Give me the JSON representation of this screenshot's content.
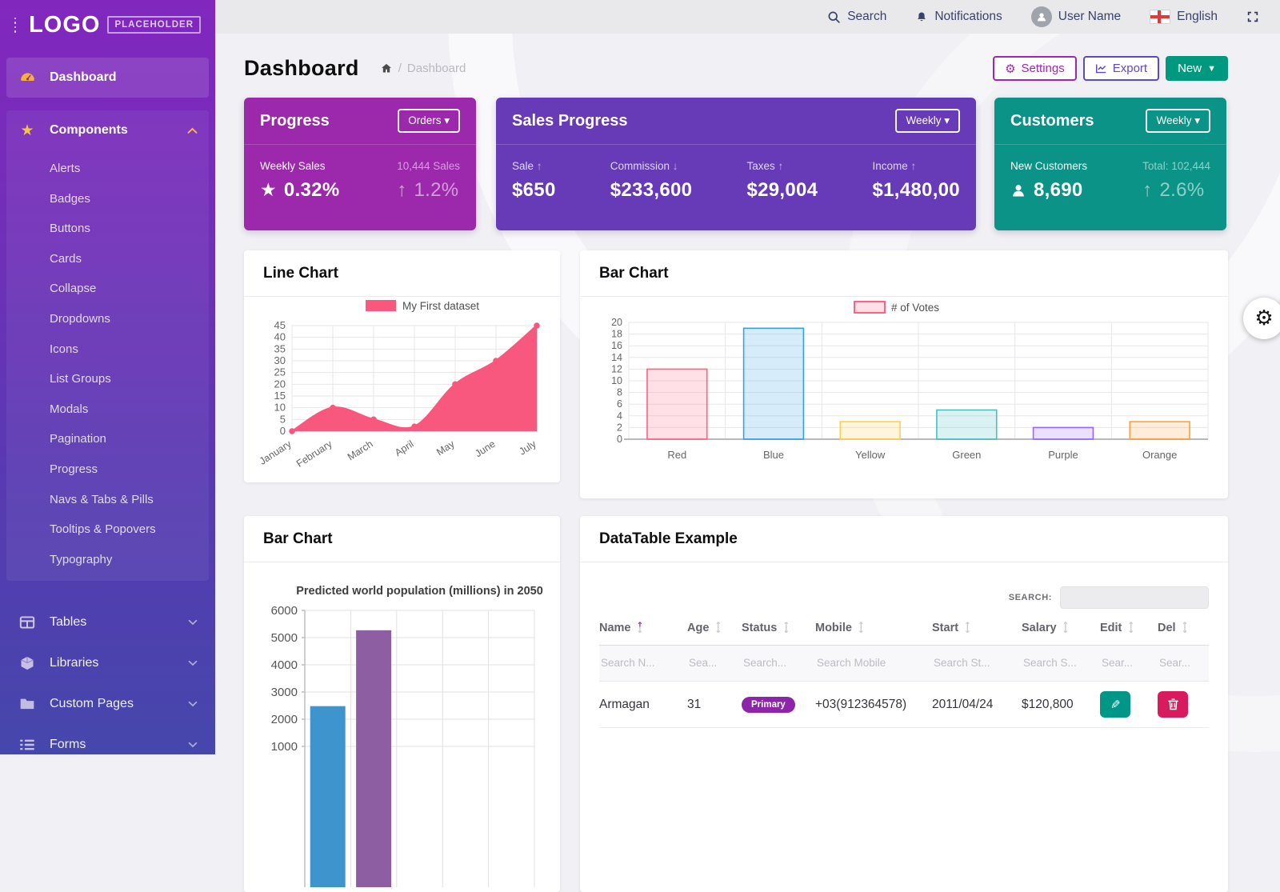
{
  "topbar": {
    "search": "Search",
    "notifications": "Notifications",
    "user": "User Name",
    "language": "English"
  },
  "sidebar": {
    "logo": "LOGO",
    "logo_badge": "PLACEHOLDER",
    "dashboard": "Dashboard",
    "components": {
      "label": "Components",
      "items": [
        "Alerts",
        "Badges",
        "Buttons",
        "Cards",
        "Collapse",
        "Dropdowns",
        "Icons",
        "List Groups",
        "Modals",
        "Pagination",
        "Progress",
        "Navs & Tabs & Pills",
        "Tooltips & Popovers",
        "Typography"
      ]
    },
    "groups": [
      {
        "label": "Tables",
        "icon": "table-icon"
      },
      {
        "label": "Libraries",
        "icon": "cube-icon"
      },
      {
        "label": "Custom Pages",
        "icon": "folder-icon"
      },
      {
        "label": "Forms",
        "icon": "list-icon"
      }
    ]
  },
  "page": {
    "title": "Dashboard",
    "breadcrumb_sep": "/",
    "breadcrumb": "Dashboard",
    "settings_label": "Settings",
    "export_label": "Export",
    "new_label": "New"
  },
  "cards": {
    "progress": {
      "title": "Progress",
      "dropdown": "Orders",
      "label": "Weekly Sales",
      "value": "0.32%",
      "sub_label": "10,444 Sales",
      "sub_value": "1.2%",
      "color": "#9C28AC"
    },
    "sales": {
      "title": "Sales Progress",
      "dropdown": "Weekly",
      "color": "#673AB7",
      "stats": [
        {
          "label": "Sale",
          "dir": "up",
          "value": "$650"
        },
        {
          "label": "Commission",
          "dir": "down",
          "value": "$233,600"
        },
        {
          "label": "Taxes",
          "dir": "up",
          "value": "$29,004"
        },
        {
          "label": "Income",
          "dir": "up",
          "value": "$1,480,00"
        }
      ]
    },
    "customers": {
      "title": "Customers",
      "dropdown": "Weekly",
      "label": "New Customers",
      "value": "8,690",
      "sub_label": "Total: 102,444",
      "sub_value": "2.6%",
      "color": "#0A9386"
    }
  },
  "panels": {
    "line_chart": "Line Chart",
    "bar_chart": "Bar Chart",
    "bar_chart2": "Bar Chart",
    "datatable": "DataTable Example"
  },
  "chart_data": [
    {
      "type": "line",
      "legend": "My First dataset",
      "categories": [
        "January",
        "February",
        "March",
        "April",
        "May",
        "June",
        "July"
      ],
      "values": [
        0,
        10,
        5,
        2,
        20,
        30,
        45
      ],
      "ylim": [
        0,
        45
      ],
      "ytick": 5,
      "color": "#F8587D",
      "grid": true,
      "legend_position": "top"
    },
    {
      "type": "bar",
      "legend": "# of Votes",
      "categories": [
        "Red",
        "Blue",
        "Yellow",
        "Green",
        "Purple",
        "Orange"
      ],
      "values": [
        12,
        19,
        3,
        5,
        2,
        3
      ],
      "ylim": [
        0,
        20
      ],
      "ytick": 2,
      "grid": true,
      "legend_position": "top",
      "fills": [
        "rgba(255,99,132,0.2)",
        "rgba(54,162,235,0.2)",
        "rgba(255,206,86,0.2)",
        "rgba(75,192,192,0.2)",
        "rgba(153,102,255,0.2)",
        "rgba(255,159,64,0.2)"
      ],
      "borders": [
        "rgba(255,99,132,1)",
        "rgba(54,162,235,1)",
        "rgba(255,206,86,1)",
        "rgba(75,192,192,1)",
        "rgba(153,102,255,1)",
        "rgba(255,159,64,1)"
      ]
    },
    {
      "type": "bar",
      "title": "Predicted world population (millions) in 2050",
      "categories": [
        "",
        "",
        "",
        "",
        ""
      ],
      "values": [
        2480,
        5270,
        null,
        null,
        null
      ],
      "ylim": [
        0,
        6000
      ],
      "ytick": 1000,
      "grid": true,
      "colors": [
        "#3E95CD",
        "#8E5EA2"
      ],
      "note": "chart cropped at bottom of viewport; only first two bars visible"
    }
  ],
  "datatable": {
    "search_label": "SEARCH:",
    "columns": [
      {
        "label": "Name",
        "sorted": "asc"
      },
      {
        "label": "Age"
      },
      {
        "label": "Status"
      },
      {
        "label": "Mobile"
      },
      {
        "label": "Start"
      },
      {
        "label": "Salary"
      },
      {
        "label": "Edit"
      },
      {
        "label": "Del"
      }
    ],
    "filters": [
      "Search N...",
      "Sea...",
      "Search...",
      "Search Mobile",
      "Search St...",
      "Search S...",
      "Sear...",
      "Sear..."
    ],
    "rows": [
      {
        "name": "Armagan",
        "age": "31",
        "status": "Primary",
        "mobile": "+03(912364578)",
        "start": "2011/04/24",
        "salary": "$120,800"
      }
    ],
    "status_color": "#8E24AA",
    "edit_color": "#009688",
    "del_color": "#D81B5E"
  }
}
